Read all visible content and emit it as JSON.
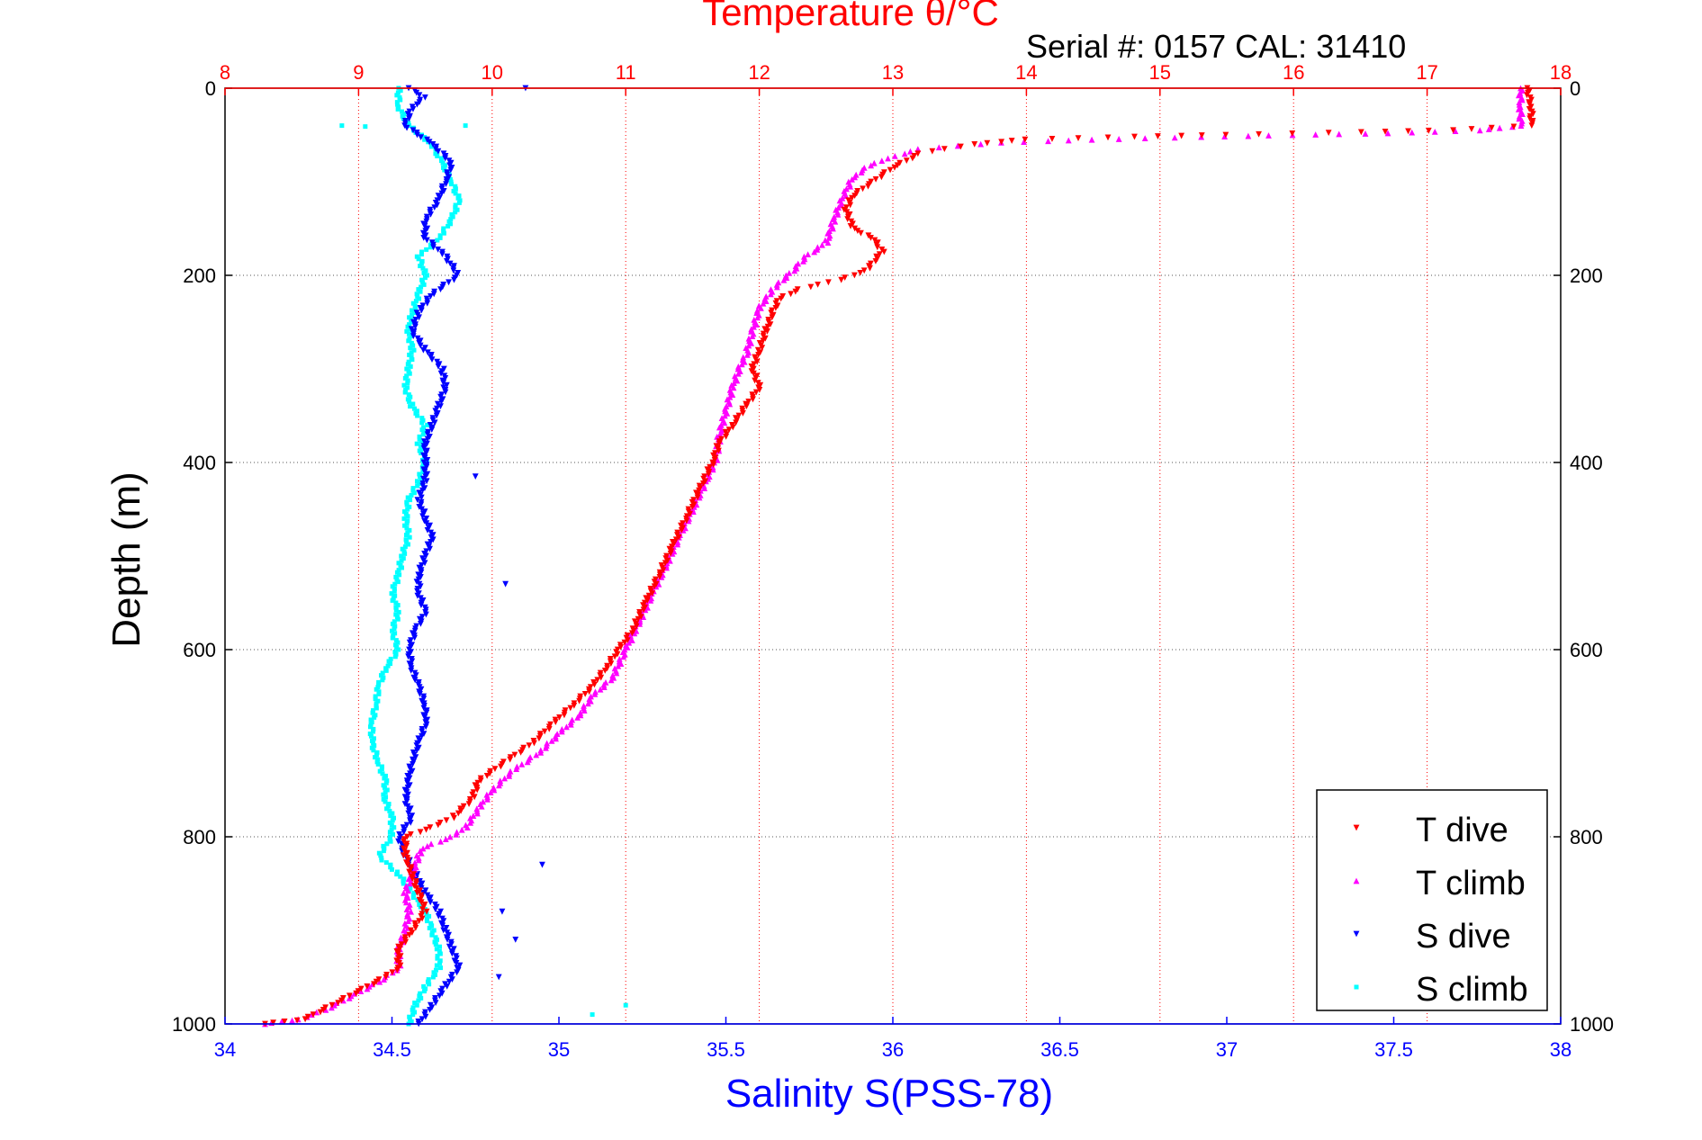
{
  "header": {
    "serial_text": "Serial #: 0157  CAL: 31410"
  },
  "chart_data": {
    "type": "scatter",
    "title": "Temperature θ/°C",
    "xlabel": "Salinity S(PSS-78)",
    "ylabel": "Depth (m)",
    "y_axis": {
      "range": [
        0,
        1000
      ],
      "reversed": true,
      "ticks": [
        0,
        200,
        400,
        600,
        800,
        1000
      ]
    },
    "x_bottom": {
      "quantity": "salinity",
      "range": [
        34,
        38
      ],
      "ticks": [
        34,
        34.5,
        35,
        35.5,
        36,
        36.5,
        37,
        37.5,
        38
      ],
      "color": "#0000ff"
    },
    "x_top": {
      "quantity": "temperature",
      "range": [
        8,
        18
      ],
      "ticks": [
        8,
        9,
        10,
        11,
        12,
        13,
        14,
        15,
        16,
        17,
        18
      ],
      "color": "#ff0000"
    },
    "grid": true,
    "legend_position": "bottom-right",
    "series": [
      {
        "name": "T dive",
        "axis": "top",
        "color": "#ff0000",
        "marker": "triangle-down",
        "points": [
          [
            17.75,
            0
          ],
          [
            17.78,
            20
          ],
          [
            17.78,
            40
          ],
          [
            17.2,
            45
          ],
          [
            16.5,
            47
          ],
          [
            15.5,
            50
          ],
          [
            14.8,
            52
          ],
          [
            14,
            55
          ],
          [
            13.6,
            60
          ],
          [
            13.2,
            70
          ],
          [
            13.0,
            85
          ],
          [
            12.85,
            100
          ],
          [
            12.7,
            115
          ],
          [
            12.65,
            130
          ],
          [
            12.7,
            150
          ],
          [
            12.85,
            160
          ],
          [
            12.92,
            175
          ],
          [
            12.8,
            195
          ],
          [
            12.6,
            205
          ],
          [
            12.3,
            215
          ],
          [
            12.15,
            225
          ],
          [
            12.1,
            240
          ],
          [
            12.05,
            260
          ],
          [
            12.0,
            280
          ],
          [
            11.95,
            300
          ],
          [
            12.0,
            320
          ],
          [
            11.9,
            340
          ],
          [
            11.8,
            360
          ],
          [
            11.7,
            380
          ],
          [
            11.65,
            400
          ],
          [
            11.55,
            430
          ],
          [
            11.45,
            460
          ],
          [
            11.35,
            490
          ],
          [
            11.25,
            520
          ],
          [
            11.15,
            550
          ],
          [
            11.05,
            580
          ],
          [
            10.95,
            600
          ],
          [
            10.85,
            620
          ],
          [
            10.75,
            640
          ],
          [
            10.6,
            660
          ],
          [
            10.45,
            680
          ],
          [
            10.3,
            700
          ],
          [
            10.1,
            720
          ],
          [
            9.9,
            740
          ],
          [
            9.85,
            760
          ],
          [
            9.7,
            780
          ],
          [
            9.55,
            790
          ],
          [
            9.35,
            800
          ],
          [
            9.35,
            820
          ],
          [
            9.4,
            840
          ],
          [
            9.45,
            860
          ],
          [
            9.5,
            880
          ],
          [
            9.4,
            900
          ],
          [
            9.3,
            920
          ],
          [
            9.3,
            940
          ],
          [
            9.2,
            950
          ],
          [
            9.0,
            965
          ],
          [
            8.8,
            980
          ],
          [
            8.6,
            995
          ],
          [
            8.3,
            1000
          ]
        ]
      },
      {
        "name": "T climb",
        "axis": "top",
        "color": "#ff00ff",
        "marker": "triangle-up",
        "points": [
          [
            17.7,
            0
          ],
          [
            17.7,
            20
          ],
          [
            17.7,
            40
          ],
          [
            17.4,
            45
          ],
          [
            16.7,
            48
          ],
          [
            16,
            50
          ],
          [
            15.3,
            52
          ],
          [
            14.5,
            55
          ],
          [
            13.8,
            58
          ],
          [
            13.2,
            65
          ],
          [
            12.95,
            75
          ],
          [
            12.8,
            85
          ],
          [
            12.7,
            95
          ],
          [
            12.65,
            110
          ],
          [
            12.6,
            125
          ],
          [
            12.55,
            145
          ],
          [
            12.5,
            165
          ],
          [
            12.35,
            180
          ],
          [
            12.25,
            195
          ],
          [
            12.1,
            215
          ],
          [
            12.0,
            235
          ],
          [
            11.95,
            260
          ],
          [
            11.9,
            285
          ],
          [
            11.85,
            300
          ],
          [
            11.8,
            320
          ],
          [
            11.75,
            345
          ],
          [
            11.7,
            370
          ],
          [
            11.68,
            395
          ],
          [
            11.6,
            420
          ],
          [
            11.5,
            450
          ],
          [
            11.4,
            480
          ],
          [
            11.3,
            510
          ],
          [
            11.2,
            540
          ],
          [
            11.1,
            570
          ],
          [
            11.0,
            600
          ],
          [
            10.9,
            630
          ],
          [
            10.75,
            650
          ],
          [
            10.65,
            670
          ],
          [
            10.5,
            690
          ],
          [
            10.35,
            710
          ],
          [
            10.15,
            730
          ],
          [
            10.0,
            750
          ],
          [
            9.9,
            770
          ],
          [
            9.8,
            790
          ],
          [
            9.7,
            800
          ],
          [
            9.5,
            810
          ],
          [
            9.45,
            820
          ],
          [
            9.4,
            840
          ],
          [
            9.35,
            860
          ],
          [
            9.38,
            880
          ],
          [
            9.35,
            900
          ],
          [
            9.3,
            920
          ],
          [
            9.3,
            940
          ],
          [
            9.15,
            955
          ],
          [
            8.95,
            970
          ],
          [
            8.75,
            985
          ],
          [
            8.55,
            995
          ],
          [
            8.3,
            1000
          ]
        ]
      },
      {
        "name": "S dive",
        "axis": "bottom",
        "color": "#0000ff",
        "marker": "triangle-down",
        "points": [
          [
            34.55,
            0
          ],
          [
            34.6,
            10
          ],
          [
            34.56,
            20
          ],
          [
            34.54,
            40
          ],
          [
            34.62,
            60
          ],
          [
            34.68,
            80
          ],
          [
            34.66,
            100
          ],
          [
            34.64,
            120
          ],
          [
            34.6,
            140
          ],
          [
            34.6,
            160
          ],
          [
            34.66,
            180
          ],
          [
            34.7,
            200
          ],
          [
            34.62,
            220
          ],
          [
            34.58,
            240
          ],
          [
            34.56,
            260
          ],
          [
            34.6,
            280
          ],
          [
            34.65,
            300
          ],
          [
            34.66,
            320
          ],
          [
            34.64,
            340
          ],
          [
            34.62,
            360
          ],
          [
            34.6,
            380
          ],
          [
            34.6,
            400
          ],
          [
            34.6,
            420
          ],
          [
            34.58,
            440
          ],
          [
            34.6,
            460
          ],
          [
            34.62,
            480
          ],
          [
            34.6,
            500
          ],
          [
            34.58,
            520
          ],
          [
            34.58,
            540
          ],
          [
            34.6,
            560
          ],
          [
            34.57,
            580
          ],
          [
            34.55,
            600
          ],
          [
            34.56,
            620
          ],
          [
            34.58,
            640
          ],
          [
            34.6,
            660
          ],
          [
            34.6,
            680
          ],
          [
            34.58,
            700
          ],
          [
            34.56,
            720
          ],
          [
            34.55,
            740
          ],
          [
            34.54,
            760
          ],
          [
            34.56,
            780
          ],
          [
            34.52,
            800
          ],
          [
            34.54,
            820
          ],
          [
            34.57,
            840
          ],
          [
            34.6,
            860
          ],
          [
            34.64,
            880
          ],
          [
            34.66,
            900
          ],
          [
            34.68,
            920
          ],
          [
            34.7,
            940
          ],
          [
            34.66,
            960
          ],
          [
            34.62,
            980
          ],
          [
            34.58,
            1000
          ]
        ]
      },
      {
        "name": "S climb",
        "axis": "bottom",
        "color": "#00ffff",
        "marker": "point",
        "points": [
          [
            34.52,
            0
          ],
          [
            34.52,
            20
          ],
          [
            34.55,
            40
          ],
          [
            34.62,
            60
          ],
          [
            34.65,
            80
          ],
          [
            34.68,
            100
          ],
          [
            34.7,
            120
          ],
          [
            34.68,
            140
          ],
          [
            34.64,
            160
          ],
          [
            34.58,
            180
          ],
          [
            34.6,
            200
          ],
          [
            34.58,
            220
          ],
          [
            34.56,
            240
          ],
          [
            34.55,
            260
          ],
          [
            34.56,
            280
          ],
          [
            34.55,
            300
          ],
          [
            34.54,
            320
          ],
          [
            34.56,
            340
          ],
          [
            34.6,
            360
          ],
          [
            34.58,
            380
          ],
          [
            34.6,
            400
          ],
          [
            34.58,
            420
          ],
          [
            34.55,
            440
          ],
          [
            34.54,
            460
          ],
          [
            34.55,
            480
          ],
          [
            34.53,
            500
          ],
          [
            34.52,
            520
          ],
          [
            34.5,
            540
          ],
          [
            34.52,
            560
          ],
          [
            34.5,
            580
          ],
          [
            34.52,
            600
          ],
          [
            34.48,
            620
          ],
          [
            34.46,
            640
          ],
          [
            34.45,
            660
          ],
          [
            34.44,
            680
          ],
          [
            34.44,
            700
          ],
          [
            34.46,
            720
          ],
          [
            34.48,
            740
          ],
          [
            34.48,
            760
          ],
          [
            34.5,
            780
          ],
          [
            34.5,
            800
          ],
          [
            34.46,
            820
          ],
          [
            34.52,
            840
          ],
          [
            34.56,
            860
          ],
          [
            34.6,
            880
          ],
          [
            34.62,
            900
          ],
          [
            34.64,
            920
          ],
          [
            34.64,
            940
          ],
          [
            34.6,
            960
          ],
          [
            34.57,
            980
          ],
          [
            34.55,
            1000
          ]
        ]
      }
    ],
    "outliers": {
      "S dive": [
        [
          34.9,
          0
        ],
        [
          34.75,
          415
        ],
        [
          34.84,
          530
        ],
        [
          34.95,
          830
        ],
        [
          34.83,
          880
        ],
        [
          34.87,
          910
        ],
        [
          34.82,
          950
        ]
      ],
      "S climb": [
        [
          34.35,
          40
        ],
        [
          34.42,
          41
        ],
        [
          34.72,
          40
        ],
        [
          35.1,
          990
        ],
        [
          35.2,
          980
        ]
      ]
    }
  }
}
